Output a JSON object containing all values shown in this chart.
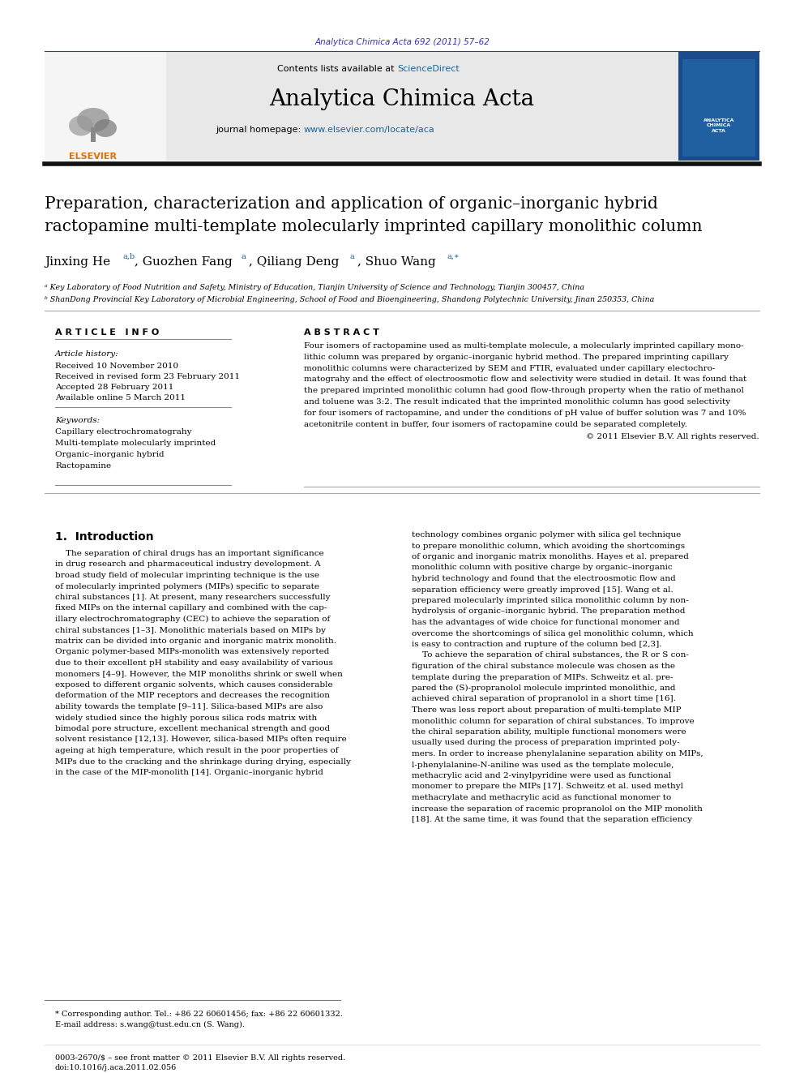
{
  "journal_ref": "Analytica Chimica Acta 692 (2011) 57–62",
  "contents_line": "Contents lists available at ScienceDirect",
  "sciencedirect_color": "#1a6496",
  "journal_name": "Analytica Chimica Acta",
  "journal_homepage": "journal homepage: www.elsevier.com/locate/aca",
  "homepage_url_color": "#1a6496",
  "header_bg": "#e8e8e8",
  "title_line1": "Preparation, characterization and application of organic–inorganic hybrid",
  "title_line2": "ractopamine multi-template molecularly imprinted capillary monolithic column",
  "affil_a": "ᵃ Key Laboratory of Food Nutrition and Safety, Ministry of Education, Tianjin University of Science and Technology, Tianjin 300457, China",
  "affil_b": "ᵇ ShanDong Provincial Key Laboratory of Microbial Engineering, School of Food and Bioengineering, Shandong Polytechnic University, Jinan 250353, China",
  "article_info_title": "A R T I C L E   I N F O",
  "abstract_title": "A B S T R A C T",
  "article_history_title": "Article history:",
  "received": "Received 10 November 2010",
  "revised": "Received in revised form 23 February 2011",
  "accepted": "Accepted 28 February 2011",
  "available": "Available online 5 March 2011",
  "keywords_title": "Keywords:",
  "keywords": [
    "Capillary electrochromatograhy",
    "Multi-template molecularly imprinted",
    "Organic–inorganic hybrid",
    "Ractopamine"
  ],
  "abstract_text": [
    "Four isomers of ractopamine used as multi-template molecule, a molecularly imprinted capillary mono-",
    "lithic column was prepared by organic–inorganic hybrid method. The prepared imprinting capillary",
    "monolithic columns were characterized by SEM and FTIR, evaluated under capillary electochro-",
    "matograhy and the effect of electroosmotic flow and selectivity were studied in detail. It was found that",
    "the prepared imprinted monolithic column had good flow-through property when the ratio of methanol",
    "and toluene was 3:2. The result indicated that the imprinted monolithic column has good selectivity",
    "for four isomers of ractopamine, and under the conditions of pH value of buffer solution was 7 and 10%",
    "acetonitrile content in buffer, four isomers of ractopamine could be separated completely."
  ],
  "copyright": "© 2011 Elsevier B.V. All rights reserved.",
  "section1_title": "1.  Introduction",
  "intro_text_left": [
    "    The separation of chiral drugs has an important significance",
    "in drug research and pharmaceutical industry development. A",
    "broad study field of molecular imprinting technique is the use",
    "of molecularly imprinted polymers (MIPs) specific to separate",
    "chiral substances [1]. At present, many researchers successfully",
    "fixed MIPs on the internal capillary and combined with the cap-",
    "illary electrochromatography (CEC) to achieve the separation of",
    "chiral substances [1–3]. Monolithic materials based on MIPs by",
    "matrix can be divided into organic and inorganic matrix monolith.",
    "Organic polymer-based MIPs-monolith was extensively reported",
    "due to their excellent pH stability and easy availability of various",
    "monomers [4–9]. However, the MIP monoliths shrink or swell when",
    "exposed to different organic solvents, which causes considerable",
    "deformation of the MIP receptors and decreases the recognition",
    "ability towards the template [9–11]. Silica-based MIPs are also",
    "widely studied since the highly porous silica rods matrix with",
    "bimodal pore structure, excellent mechanical strength and good",
    "solvent resistance [12,13]. However, silica-based MIPs often require",
    "ageing at high temperature, which result in the poor properties of",
    "MIPs due to the cracking and the shrinkage during drying, especially",
    "in the case of the MIP-monolith [14]. Organic–inorganic hybrid"
  ],
  "intro_text_right": [
    "technology combines organic polymer with silica gel technique",
    "to prepare monolithic column, which avoiding the shortcomings",
    "of organic and inorganic matrix monoliths. Hayes et al. prepared",
    "monolithic column with positive charge by organic–inorganic",
    "hybrid technology and found that the electroosmotic flow and",
    "separation efficiency were greatly improved [15]. Wang et al.",
    "prepared molecularly imprinted silica monolithic column by non-",
    "hydrolysis of organic–inorganic hybrid. The preparation method",
    "has the advantages of wide choice for functional monomer and",
    "overcome the shortcomings of silica gel monolithic column, which",
    "is easy to contraction and rupture of the column bed [2,3].",
    "    To achieve the separation of chiral substances, the R or S con-",
    "figuration of the chiral substance molecule was chosen as the",
    "template during the preparation of MIPs. Schweitz et al. pre-",
    "pared the (S)-propranolol molecule imprinted monolithic, and",
    "achieved chiral separation of propranolol in a short time [16].",
    "There was less report about preparation of multi-template MIP",
    "monolithic column for separation of chiral substances. To improve",
    "the chiral separation ability, multiple functional monomers were",
    "usually used during the process of preparation imprinted poly-",
    "mers. In order to increase phenylalanine separation ability on MIPs,",
    "l-phenylalanine-N-aniline was used as the template molecule,",
    "methacrylic acid and 2-vinylpyridine were used as functional",
    "monomer to prepare the MIPs [17]. Schweitz et al. used methyl",
    "methacrylate and methacrylic acid as functional monomer to",
    "increase the separation of racemic propranolol on the MIP monolith",
    "[18]. At the same time, it was found that the separation efficiency"
  ],
  "footnote_star": "* Corresponding author. Tel.: +86 22 60601456; fax: +86 22 60601332.",
  "footnote_email": "E-mail address: s.wang@tust.edu.cn (S. Wang).",
  "issn_line": "0003-2670/$ – see front matter © 2011 Elsevier B.V. All rights reserved.",
  "doi_line": "doi:10.1016/j.aca.2011.02.056",
  "bg_color": "#ffffff",
  "text_color": "#000000",
  "link_color": "#1a6496",
  "journal_ref_color": "#3333aa"
}
